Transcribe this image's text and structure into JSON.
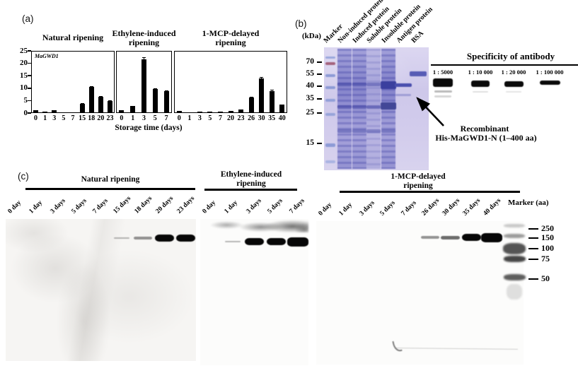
{
  "panel_a": {
    "label": "(a)",
    "gene_label": "MaGWD1",
    "xlabel": "Storage time (days)",
    "y_ticks": [
      "25",
      "20",
      "15",
      "10",
      "5",
      "0"
    ]
  },
  "chart_data": [
    {
      "type": "bar",
      "title_lines": [
        "Natural ripening"
      ],
      "categories": [
        "0",
        "1",
        "3",
        "5",
        "7",
        "15",
        "18",
        "20",
        "23"
      ],
      "values": [
        1.0,
        0.5,
        1.2,
        0.3,
        0.2,
        3.7,
        10.4,
        6.4,
        4.7
      ],
      "errors": [
        0,
        0,
        0,
        0,
        0,
        0.2,
        0.5,
        0.4,
        0.3
      ],
      "ylim": [
        0,
        25
      ],
      "annotation": "MaGWD1",
      "xlabel": "Storage time (days)",
      "ylabel": ""
    },
    {
      "type": "bar",
      "title_lines": [
        "Ethylene-induced",
        "ripening"
      ],
      "categories": [
        "0",
        "1",
        "3",
        "5",
        "7"
      ],
      "values": [
        1.0,
        2.7,
        21.7,
        9.6,
        8.8
      ],
      "errors": [
        0,
        0,
        0.7,
        0.4,
        0.3
      ],
      "ylim": [
        0,
        25
      ]
    },
    {
      "type": "bar",
      "title_lines": [
        "1-MCP-delayed",
        "ripening"
      ],
      "categories": [
        "0",
        "1",
        "3",
        "5",
        "7",
        "20",
        "23",
        "26",
        "30",
        "35",
        "40"
      ],
      "values": [
        0.9,
        0.4,
        0.5,
        0.5,
        0.7,
        0.9,
        1.3,
        6.3,
        13.9,
        8.8,
        3.3
      ],
      "errors": [
        0,
        0,
        0,
        0,
        0,
        0,
        0.2,
        0.3,
        0.5,
        0.6,
        0.2
      ],
      "ylim": [
        0,
        25
      ]
    }
  ],
  "panel_b": {
    "label": "(b)",
    "kda_label": "(kDa)",
    "lanes": [
      "Marker",
      "Non-induced protein",
      "Induced protein",
      "Soluble protein",
      "Insoluble protein",
      "Antigen protein",
      "BSA"
    ],
    "marker_ticks": [
      "70",
      "55",
      "40",
      "35",
      "25",
      "15"
    ],
    "specificity_title": "Specificity of antibody",
    "dilutions": [
      "1 : 5000",
      "1 : 10 000",
      "1 : 20 000",
      "1 : 100 000"
    ],
    "annotation": [
      "Recombinant",
      "His-MaGWD1-N (1–400 aa)"
    ]
  },
  "panel_c": {
    "label": "(c)",
    "marker_label": "Marker (aa)",
    "marker_ticks": [
      "250",
      "150",
      "100",
      "75",
      "50"
    ],
    "groups": [
      {
        "title_lines": [
          "Natural ripening"
        ],
        "lanes": [
          "0 day",
          "1 day",
          "3 days",
          "5 days",
          "7 days",
          "15 days",
          "18 days",
          "20 days",
          "23 days"
        ],
        "bands": [
          {
            "lane": "15 days",
            "intensity": "trace"
          },
          {
            "lane": "18 days",
            "intensity": "faint"
          },
          {
            "lane": "20 days",
            "intensity": "strong"
          },
          {
            "lane": "23 days",
            "intensity": "strong"
          }
        ]
      },
      {
        "title_lines": [
          "Ethylene-induced",
          "ripening"
        ],
        "lanes": [
          "0 day",
          "1 day",
          "3 days",
          "5 days",
          "7 days"
        ],
        "bands": [
          {
            "lane": "1 day",
            "intensity": "trace"
          },
          {
            "lane": "3 days",
            "intensity": "strong"
          },
          {
            "lane": "5 days",
            "intensity": "strong"
          },
          {
            "lane": "7 days",
            "intensity": "strongest"
          }
        ]
      },
      {
        "title_lines": [
          "1-MCP-delayed",
          "ripening"
        ],
        "lanes": [
          "0 day",
          "1 day",
          "3 days",
          "5 days",
          "7 days",
          "26 days",
          "30 days",
          "35 days",
          "40 days"
        ],
        "bands": [
          {
            "lane": "26 days",
            "intensity": "faint"
          },
          {
            "lane": "30 days",
            "intensity": "light"
          },
          {
            "lane": "35 days",
            "intensity": "strong"
          },
          {
            "lane": "40 days",
            "intensity": "strongest"
          }
        ]
      }
    ]
  },
  "colors": {
    "ink": "#000000",
    "gel_background": "#cfc9ea",
    "gel_band_blue": "#4a4fae",
    "gel_marker_blue": "#8d9bd6",
    "gel_marker_red": "#a5647e",
    "blot_band": "#070707"
  }
}
